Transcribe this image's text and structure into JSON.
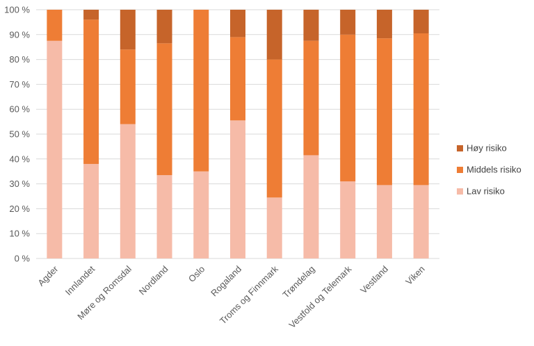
{
  "chart_data": {
    "type": "bar",
    "stacked": true,
    "orientation": "vertical",
    "title": "",
    "xlabel": "",
    "ylabel": "",
    "ylim": [
      0,
      100
    ],
    "y_ticks": [
      0,
      10,
      20,
      30,
      40,
      50,
      60,
      70,
      80,
      90,
      100
    ],
    "y_tick_labels": [
      "0 %",
      "10 %",
      "20 %",
      "30 %",
      "40 %",
      "50 %",
      "60 %",
      "70 %",
      "80 %",
      "90 %",
      "100 %"
    ],
    "grid": true,
    "legend_position": "right",
    "categories": [
      "Agder",
      "Innlandet",
      "Møre og Romsdal",
      "Nordland",
      "Oslo",
      "Rogaland",
      "Troms og Finnmark",
      "Trøndelag",
      "Vestfold og Telemark",
      "Vestland",
      "Viken"
    ],
    "series": [
      {
        "name": "Lav risiko",
        "color": "#f6bba8",
        "values": [
          87.5,
          38,
          54,
          33.5,
          35,
          55.5,
          24.5,
          41.5,
          31,
          29.5,
          29.5
        ]
      },
      {
        "name": "Middels risiko",
        "color": "#ee7d35",
        "values": [
          12.5,
          58,
          30,
          53,
          65,
          33.5,
          55.5,
          46,
          59,
          59,
          61
        ]
      },
      {
        "name": "Høy risiko",
        "color": "#c6642a",
        "values": [
          0,
          4,
          16,
          13.5,
          0,
          11,
          20,
          12.5,
          10,
          11.5,
          9.5
        ]
      }
    ],
    "legend_order": [
      "Høy risiko",
      "Middels risiko",
      "Lav risiko"
    ]
  }
}
